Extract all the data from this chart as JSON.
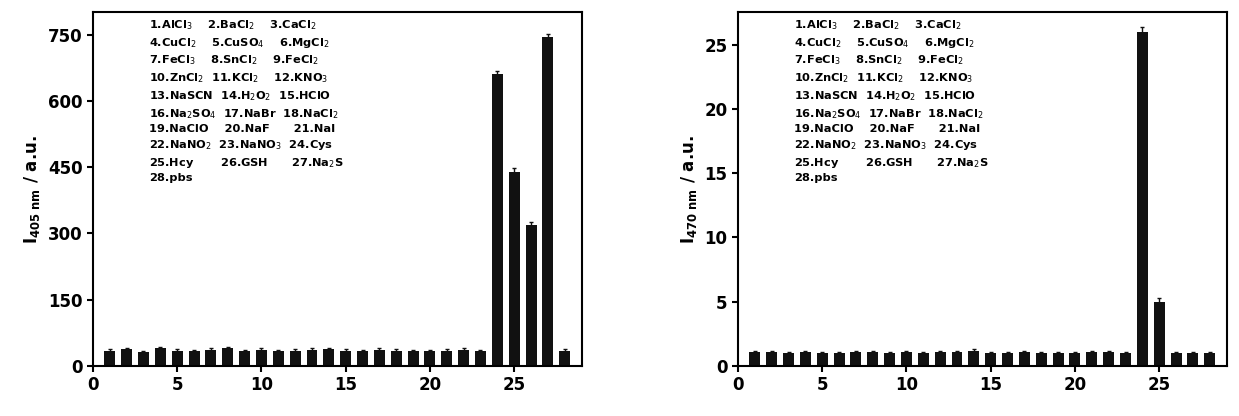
{
  "left": {
    "ylabel": "$\\mathbf{I_{405\\ nm}}$ / a.u.",
    "ylim": [
      0,
      800
    ],
    "yticks": [
      0,
      150,
      300,
      450,
      600,
      750
    ],
    "values": [
      35,
      38,
      32,
      40,
      35,
      33,
      36,
      40,
      34,
      36,
      33,
      35,
      37,
      38,
      35,
      34,
      36,
      35,
      34,
      33,
      35,
      36,
      33,
      660,
      440,
      320,
      745,
      35
    ],
    "errors": [
      4,
      4,
      3,
      4,
      4,
      3,
      4,
      4,
      3,
      4,
      3,
      4,
      4,
      4,
      3,
      3,
      4,
      3,
      3,
      3,
      4,
      4,
      3,
      8,
      8,
      6,
      6,
      3
    ],
    "legend_lines": [
      "1.AlCl$_3$    2.BaCl$_2$    3.CaCl$_2$",
      "4.CuCl$_2$    5.CuSO$_4$    6.MgCl$_2$",
      "7.FeCl$_3$    8.SnCl$_2$    9.FeCl$_2$",
      "10.ZnCl$_2$  11.KCl$_2$    12.KNO$_3$",
      "13.NaSCN  14.H$_2$O$_2$  15.HClO",
      "16.Na$_2$SO$_4$  17.NaBr  18.NaCl$_2$",
      "19.NaClO    20.NaF      21.NaI",
      "22.NaNO$_2$  23.NaNO$_3$  24.Cys",
      "25.Hcy       26.GSH      27.Na$_2$S",
      "28.pbs"
    ],
    "bar_color": "#111111",
    "error_color": "#111111"
  },
  "right": {
    "ylabel": "$\\mathbf{I_{470\\ nm}}$ / a.u.",
    "ylim": [
      0,
      27.5
    ],
    "yticks": [
      0,
      5,
      10,
      15,
      20,
      25
    ],
    "values": [
      1.1,
      1.1,
      1.0,
      1.1,
      1.0,
      1.0,
      1.1,
      1.1,
      1.0,
      1.1,
      1.0,
      1.1,
      1.1,
      1.2,
      1.0,
      1.0,
      1.1,
      1.0,
      1.0,
      1.0,
      1.1,
      1.1,
      1.0,
      26.0,
      5.0,
      1.0,
      1.0,
      1.0
    ],
    "errors": [
      0.1,
      0.1,
      0.1,
      0.1,
      0.1,
      0.1,
      0.1,
      0.1,
      0.1,
      0.1,
      0.1,
      0.1,
      0.1,
      0.15,
      0.1,
      0.1,
      0.1,
      0.1,
      0.1,
      0.1,
      0.1,
      0.1,
      0.1,
      0.4,
      0.3,
      0.1,
      0.1,
      0.1
    ],
    "legend_lines": [
      "1.AlCl$_3$    2.BaCl$_2$    3.CaCl$_2$",
      "4.CuCl$_2$    5.CuSO$_4$    6.MgCl$_2$",
      "7.FeCl$_3$    8.SnCl$_2$    9.FeCl$_2$",
      "10.ZnCl$_2$  11.KCl$_2$    12.KNO$_3$",
      "13.NaSCN  14.H$_2$O$_2$  15.HClO",
      "16.Na$_2$SO$_4$  17.NaBr  18.NaCl$_2$",
      "19.NaClO    20.NaF      21.NaI",
      "22.NaNO$_2$  23.NaNO$_3$  24.Cys",
      "25.Hcy       26.GSH      27.Na$_2$S",
      "28.pbs"
    ],
    "bar_color": "#111111",
    "error_color": "#111111"
  },
  "xlim": [
    0,
    29
  ],
  "xticks": [
    0,
    5,
    10,
    15,
    20,
    25
  ],
  "n_bars": 28,
  "background_color": "#ffffff",
  "legend_fontsize": 8.2,
  "axis_fontsize": 12,
  "tick_fontsize": 12
}
